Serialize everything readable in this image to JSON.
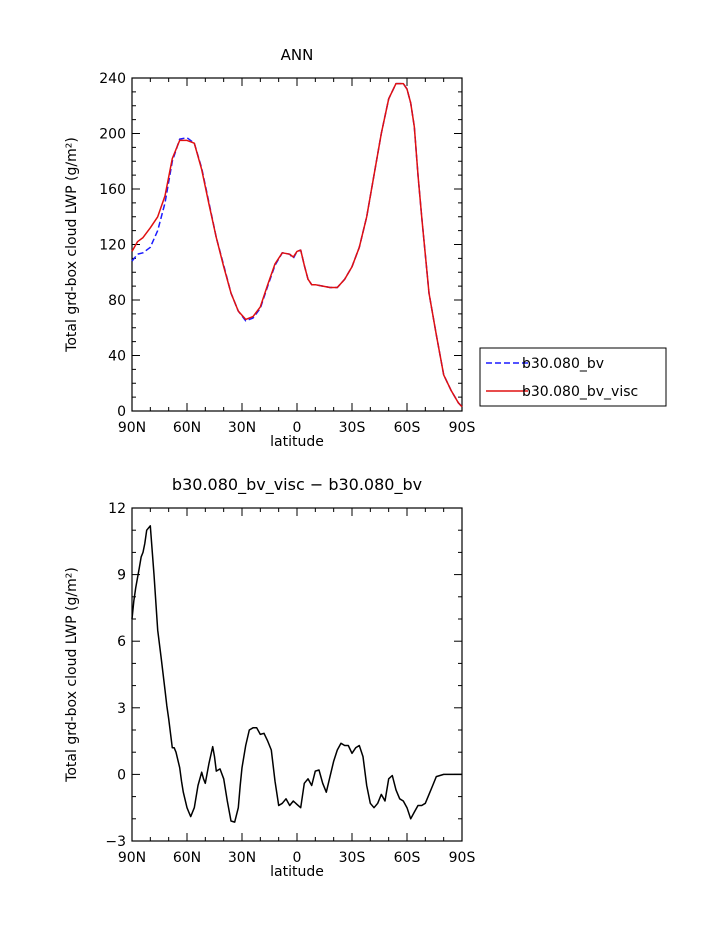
{
  "chart_data": [
    {
      "type": "line",
      "title": "ANN",
      "xlabel": "latitude",
      "ylabel": "Total grd-box cloud LWP (g/m²)",
      "xlim": [
        -90,
        90
      ],
      "ylim": [
        0,
        240
      ],
      "x_ticks": [
        -90,
        -60,
        -30,
        0,
        30,
        60,
        90
      ],
      "x_tick_labels": [
        "90N",
        "60N",
        "30N",
        "0",
        "30S",
        "60S",
        "90S"
      ],
      "y_ticks": [
        0,
        40,
        80,
        120,
        160,
        200,
        240
      ],
      "y_tick_labels": [
        "0",
        "40",
        "80",
        "120",
        "160",
        "200",
        "240"
      ],
      "legend_position": "right",
      "series": [
        {
          "name": "b30.080_bv",
          "color": "#1a1aff",
          "style": "dashed",
          "x": [
            -90,
            -87,
            -84,
            -80,
            -76,
            -72,
            -68,
            -64,
            -60,
            -56,
            -52,
            -48,
            -44,
            -40,
            -36,
            -32,
            -28,
            -24,
            -20,
            -16,
            -12,
            -8,
            -4,
            -2,
            0,
            2,
            4,
            6,
            8,
            10,
            14,
            18,
            22,
            26,
            30,
            34,
            38,
            42,
            46,
            50,
            54,
            58,
            60,
            62,
            64,
            66,
            68,
            72,
            76,
            80,
            84,
            88,
            90
          ],
          "y": [
            108,
            113,
            114,
            118,
            130,
            150,
            180,
            196,
            197,
            193,
            175,
            150,
            125,
            105,
            85,
            72,
            65,
            67,
            74,
            90,
            105,
            114,
            113,
            110,
            115,
            116,
            105,
            95,
            91,
            91,
            90,
            89,
            89,
            95,
            104,
            118,
            140,
            170,
            200,
            225,
            236,
            236,
            232,
            222,
            205,
            170,
            140,
            85,
            55,
            26,
            15,
            6,
            3
          ]
        },
        {
          "name": "b30.080_bv_visc",
          "color": "#e01010",
          "style": "solid",
          "x": [
            -90,
            -87,
            -84,
            -80,
            -76,
            -72,
            -68,
            -64,
            -60,
            -56,
            -52,
            -48,
            -44,
            -40,
            -36,
            -32,
            -28,
            -24,
            -20,
            -16,
            -12,
            -8,
            -4,
            -2,
            0,
            2,
            4,
            6,
            8,
            10,
            14,
            18,
            22,
            26,
            30,
            34,
            38,
            42,
            46,
            50,
            54,
            58,
            60,
            62,
            64,
            66,
            68,
            72,
            76,
            80,
            84,
            88,
            90
          ],
          "y": [
            115,
            122,
            125,
            132,
            140,
            155,
            182,
            195,
            195,
            193,
            174,
            149,
            125,
            104,
            85,
            72,
            66,
            68,
            75,
            91,
            106,
            114,
            113,
            111,
            115,
            116,
            105,
            95,
            91,
            91,
            90,
            89,
            89,
            95,
            104,
            118,
            140,
            170,
            200,
            225,
            236,
            236,
            232,
            222,
            205,
            170,
            140,
            85,
            55,
            26,
            15,
            6,
            3
          ]
        }
      ]
    },
    {
      "type": "line",
      "title": "b30.080_bv_visc − b30.080_bv",
      "xlabel": "latitude",
      "ylabel": "Total grd-box cloud LWP (g/m²)",
      "xlim": [
        -90,
        90
      ],
      "ylim": [
        -3,
        12
      ],
      "x_ticks": [
        -90,
        -60,
        -30,
        0,
        30,
        60,
        90
      ],
      "x_tick_labels": [
        "90N",
        "60N",
        "30N",
        "0",
        "30S",
        "60S",
        "90S"
      ],
      "y_ticks": [
        -3,
        0,
        3,
        6,
        9,
        12
      ],
      "y_tick_labels": [
        "−3",
        "0",
        "3",
        "6",
        "9",
        "12"
      ],
      "series": [
        {
          "color": "#000000",
          "style": "solid",
          "x": [
            -90,
            -89,
            -88,
            -86,
            -85,
            -84,
            -83,
            -82,
            -80,
            -78,
            -76,
            -74,
            -72,
            -71,
            -70,
            -68,
            -67,
            -66,
            -64,
            -63,
            -62,
            -60,
            -59,
            -58,
            -56,
            -54,
            -52,
            -51,
            -50,
            -48,
            -46,
            -45,
            -44,
            -42,
            -40,
            -38,
            -36,
            -34,
            -32,
            -31,
            -30,
            -28,
            -26,
            -24,
            -22,
            -20,
            -18,
            -16,
            -14,
            -12,
            -10,
            -8,
            -6,
            -4,
            -2,
            0,
            2,
            4,
            6,
            8,
            10,
            12,
            14,
            16,
            18,
            20,
            22,
            24,
            26,
            28,
            30,
            32,
            34,
            36,
            38,
            40,
            42,
            44,
            46,
            48,
            50,
            52,
            54,
            56,
            58,
            60,
            62,
            64,
            66,
            68,
            70,
            72,
            74,
            76,
            78,
            80,
            82,
            84,
            86,
            88,
            90
          ],
          "y": [
            7.0,
            7.8,
            8.4,
            9.3,
            9.8,
            10.0,
            10.4,
            11.0,
            11.2,
            9.0,
            6.5,
            5.2,
            3.8,
            3.1,
            2.5,
            1.2,
            1.2,
            1.0,
            0.3,
            -0.3,
            -0.8,
            -1.5,
            -1.7,
            -1.9,
            -1.5,
            -0.5,
            0.1,
            -0.2,
            -0.4,
            0.5,
            1.25,
            0.8,
            0.15,
            0.25,
            -0.2,
            -1.2,
            -2.1,
            -2.15,
            -1.5,
            -0.5,
            0.3,
            1.3,
            2.0,
            2.1,
            2.1,
            1.8,
            1.85,
            1.5,
            1.1,
            -0.3,
            -1.4,
            -1.3,
            -1.1,
            -1.4,
            -1.2,
            -1.35,
            -1.5,
            -0.4,
            -0.2,
            -0.5,
            0.15,
            0.2,
            -0.4,
            -0.8,
            -0.1,
            0.6,
            1.1,
            1.4,
            1.3,
            1.3,
            0.95,
            1.2,
            1.3,
            0.8,
            -0.5,
            -1.3,
            -1.5,
            -1.3,
            -0.9,
            -1.2,
            -0.2,
            -0.05,
            -0.7,
            -1.1,
            -1.2,
            -1.5,
            -2.0,
            -1.7,
            -1.4,
            -1.4,
            -1.3,
            -0.9,
            -0.5,
            -0.1,
            -0.05,
            0.0,
            0.0,
            0.0,
            0.0,
            0.0,
            0.0
          ]
        }
      ]
    }
  ]
}
